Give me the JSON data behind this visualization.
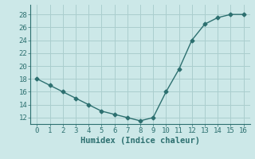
{
  "x": [
    0,
    1,
    2,
    3,
    4,
    5,
    6,
    7,
    8,
    9,
    10,
    11,
    12,
    13,
    14,
    15,
    16
  ],
  "y": [
    18,
    17,
    16,
    15,
    14,
    13,
    12.5,
    12,
    11.5,
    12,
    16,
    19.5,
    24,
    26.5,
    27.5,
    28,
    28
  ],
  "xlabel": "Humidex (Indice chaleur)",
  "xlim": [
    -0.5,
    16.5
  ],
  "ylim": [
    11,
    29.5
  ],
  "yticks": [
    12,
    14,
    16,
    18,
    20,
    22,
    24,
    26,
    28
  ],
  "xticks": [
    0,
    1,
    2,
    3,
    4,
    5,
    6,
    7,
    8,
    9,
    10,
    11,
    12,
    13,
    14,
    15,
    16
  ],
  "line_color": "#2d7070",
  "marker": "D",
  "bg_color": "#cce8e8",
  "grid_color": "#aacece",
  "tick_fontsize": 6.5,
  "xlabel_fontsize": 7.5
}
